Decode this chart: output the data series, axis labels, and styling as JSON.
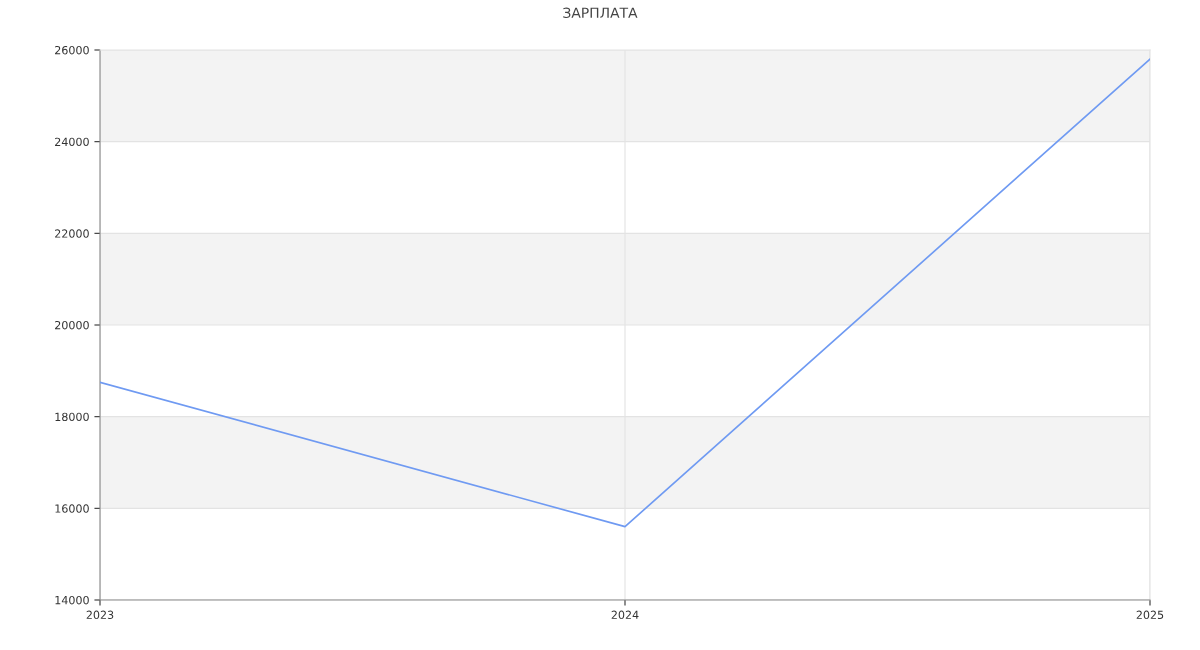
{
  "chart_data": {
    "type": "line",
    "title": "ЗАРПЛАТА",
    "x": [
      2023,
      2024,
      2025
    ],
    "series": [
      {
        "color": "#6f9af2",
        "values": [
          18750,
          15600,
          25800
        ]
      }
    ],
    "xlim": [
      2023,
      2025
    ],
    "xticks": [
      2023,
      2024,
      2025
    ],
    "ylim": [
      14000,
      26000
    ],
    "yticks": [
      14000,
      16000,
      18000,
      20000,
      22000,
      24000,
      26000
    ],
    "bands": [
      {
        "axis": "y",
        "from": 16000,
        "to": 18000,
        "color": "#f3f3f3"
      },
      {
        "axis": "y",
        "from": 20000,
        "to": 22000,
        "color": "#f3f3f3"
      },
      {
        "axis": "y",
        "from": 24000,
        "to": 26000,
        "color": "#f3f3f3"
      }
    ],
    "grid": true,
    "legend": false,
    "marker": "none",
    "line_style": "solid"
  }
}
